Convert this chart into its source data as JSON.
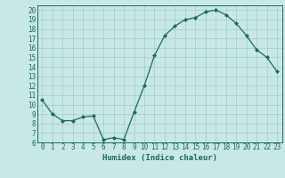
{
  "x": [
    0,
    1,
    2,
    3,
    4,
    5,
    6,
    7,
    8,
    9,
    10,
    11,
    12,
    13,
    14,
    15,
    16,
    17,
    18,
    19,
    20,
    21,
    22,
    23
  ],
  "y": [
    10.5,
    9.0,
    8.3,
    8.3,
    8.7,
    8.8,
    6.3,
    6.5,
    6.3,
    9.2,
    12.0,
    15.2,
    17.3,
    18.3,
    19.0,
    19.2,
    19.8,
    20.0,
    19.5,
    18.6,
    17.3,
    15.8,
    15.0,
    13.5
  ],
  "xlabel": "Humidex (Indice chaleur)",
  "xlim": [
    -0.5,
    23.5
  ],
  "ylim": [
    6,
    20.5
  ],
  "yticks": [
    6,
    7,
    8,
    9,
    10,
    11,
    12,
    13,
    14,
    15,
    16,
    17,
    18,
    19,
    20
  ],
  "xticks": [
    0,
    1,
    2,
    3,
    4,
    5,
    6,
    7,
    8,
    9,
    10,
    11,
    12,
    13,
    14,
    15,
    16,
    17,
    18,
    19,
    20,
    21,
    22,
    23
  ],
  "line_color": "#1a6b5a",
  "marker": "D",
  "marker_size": 2.0,
  "bg_color": "#c8e8e5",
  "grid_color": "#a0ccc8",
  "font_color": "#1a6b5a",
  "tick_fontsize": 5.5,
  "xlabel_fontsize": 6.5
}
